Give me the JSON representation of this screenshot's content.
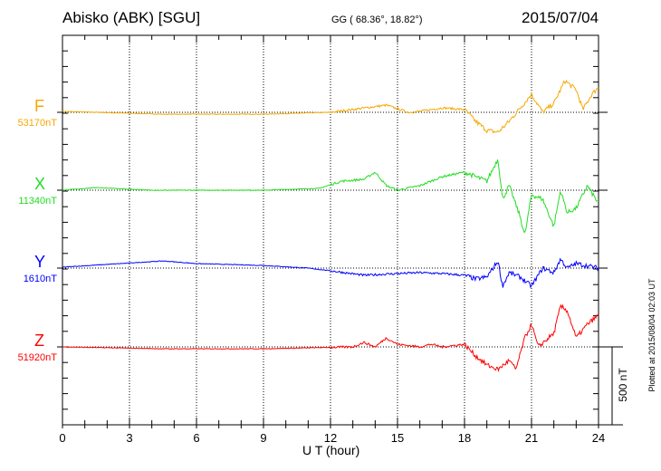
{
  "header": {
    "station": "Abisko (ABK)  [SGU]",
    "coords": "GG ( 68.36°,  18.82°)",
    "date": "2015/07/04"
  },
  "footer": {
    "plotted": "Plotted at 2015/08/04 02:03 UT"
  },
  "chart_data": {
    "type": "line",
    "xlabel": "U T (hour)",
    "xlim": [
      0,
      24
    ],
    "xticks": [
      "0",
      "3",
      "6",
      "9",
      "12",
      "15",
      "18",
      "21",
      "24"
    ],
    "scale_bar": {
      "label": "500 nT",
      "value": 500
    },
    "series": [
      {
        "name": "F",
        "baseline_label": "53170nT",
        "color": "#f5a800",
        "x": [
          0,
          4.5,
          9,
          12,
          14.5,
          15.5,
          16,
          17,
          18,
          18.5,
          19,
          19.5,
          20,
          20.5,
          21,
          21.5,
          22,
          22.5,
          23,
          23.3,
          23.7,
          24
        ],
        "y": [
          6,
          -12,
          -12,
          0,
          46,
          0,
          6,
          29,
          17,
          -58,
          -116,
          -128,
          -58,
          29,
          116,
          0,
          58,
          203,
          145,
          17,
          116,
          162
        ]
      },
      {
        "name": "X",
        "baseline_label": "11340nT",
        "color": "#22dd22",
        "x": [
          0,
          1.5,
          4,
          9,
          11.5,
          12.5,
          13.5,
          14,
          14.5,
          15,
          16,
          17,
          18,
          18.5,
          19,
          19.5,
          19.7,
          20,
          20.5,
          20.7,
          21,
          21.5,
          22,
          22.3,
          22.6,
          23,
          23.5,
          24
        ],
        "y": [
          0,
          17,
          0,
          0,
          12,
          58,
          70,
          116,
          29,
          0,
          29,
          87,
          116,
          87,
          58,
          203,
          -58,
          29,
          -174,
          -290,
          -29,
          -58,
          -232,
          0,
          -145,
          -116,
          29,
          -87
        ]
      },
      {
        "name": "Y",
        "baseline_label": "1610nT",
        "color": "#0000ff",
        "x": [
          0,
          4.5,
          6,
          9,
          11,
          12,
          13.5,
          15,
          16,
          17,
          18,
          18.5,
          19,
          19.5,
          19.7,
          20,
          20.5,
          21,
          21.5,
          22,
          22.3,
          22.6,
          23,
          24
        ],
        "y": [
          6,
          46,
          29,
          17,
          0,
          -17,
          -46,
          -35,
          -29,
          -35,
          -46,
          -70,
          -58,
          46,
          -116,
          -29,
          -58,
          -116,
          0,
          -29,
          58,
          0,
          29,
          0
        ]
      },
      {
        "name": "Z",
        "baseline_label": "51920nT",
        "color": "#ff0000",
        "x": [
          0,
          4.5,
          9,
          13,
          13.5,
          14,
          14.5,
          15,
          16,
          16.5,
          17,
          18,
          18.5,
          19,
          19.5,
          20,
          20.3,
          20.7,
          21,
          21.3,
          22,
          22.3,
          22.6,
          23,
          23.5,
          24
        ],
        "y": [
          0,
          -12,
          -12,
          0,
          29,
          0,
          58,
          17,
          0,
          17,
          0,
          17,
          -58,
          -116,
          -145,
          -87,
          -145,
          58,
          145,
          0,
          87,
          261,
          232,
          58,
          145,
          203
        ]
      }
    ]
  }
}
